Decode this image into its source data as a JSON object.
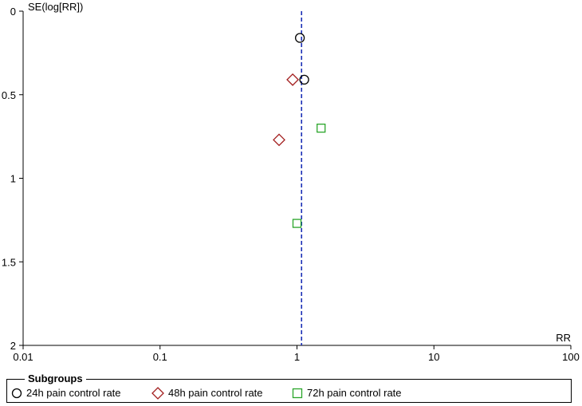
{
  "chart_data": {
    "type": "scatter",
    "title": "",
    "xlabel": "RR",
    "ylabel": "SE(log[RR])",
    "x_scale": "log",
    "xlim": [
      0.01,
      100
    ],
    "ylim": [
      0,
      2
    ],
    "y_inverted": true,
    "x_ticks": [
      "0.01",
      "0.1",
      "1",
      "10",
      "100"
    ],
    "y_ticks": [
      "0",
      "0.5",
      "1",
      "1.5",
      "2"
    ],
    "reference_line": {
      "x": 1.08,
      "style": "dashed",
      "color": "#1a2fb5"
    },
    "legend": {
      "title": "Subgroups",
      "position": "bottom"
    },
    "series": [
      {
        "name": "24h pain control rate",
        "marker": "circle",
        "color": "#000000",
        "points": [
          {
            "x": 1.05,
            "y": 0.16
          },
          {
            "x": 1.13,
            "y": 0.41
          }
        ]
      },
      {
        "name": "48h pain control rate",
        "marker": "diamond",
        "color": "#a31f1f",
        "points": [
          {
            "x": 0.93,
            "y": 0.41
          },
          {
            "x": 0.74,
            "y": 0.77
          }
        ]
      },
      {
        "name": "72h pain control rate",
        "marker": "square",
        "color": "#2aa52a",
        "points": [
          {
            "x": 1.5,
            "y": 0.7
          },
          {
            "x": 1.0,
            "y": 1.27
          }
        ]
      }
    ]
  }
}
